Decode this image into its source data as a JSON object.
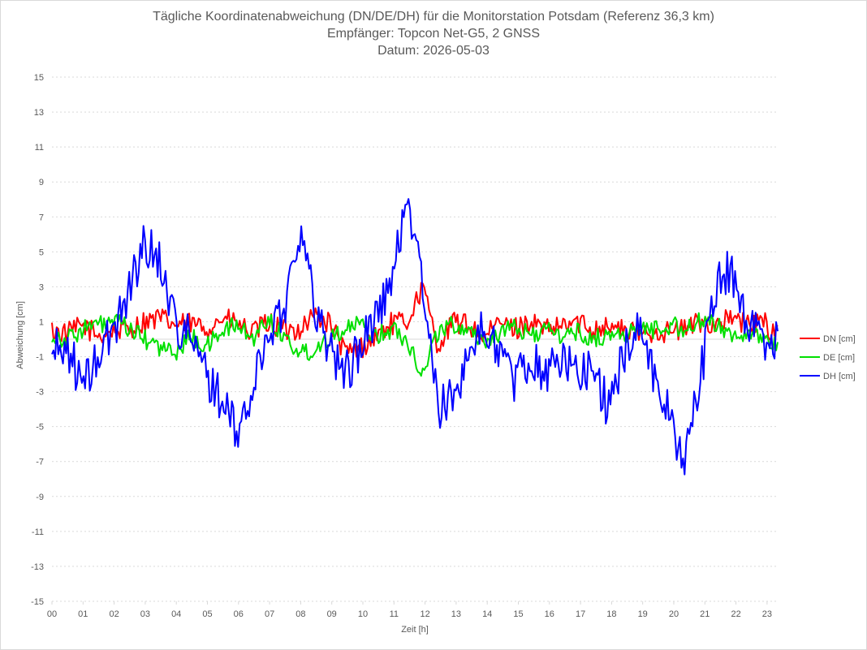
{
  "title": {
    "line1": "Tägliche Koordinatenabweichung (DN/DE/DH) für die Monitorstation Potsdam (Referenz 36,3 km)",
    "line2": "Empfänger: Topcon Net-G5, 2 GNSS",
    "line3": "Datum: 2026-05-03"
  },
  "chart_data": {
    "type": "line",
    "xlabel": "Zeit [h]",
    "ylabel": "Abweichung [cm]",
    "xlim": [
      0,
      23.5
    ],
    "ylim": [
      -15,
      15
    ],
    "y_ticks": [
      15,
      13,
      11,
      9,
      7,
      5,
      3,
      1,
      -1,
      -3,
      -5,
      -7,
      -9,
      -11,
      -13,
      -15
    ],
    "x_tick_labels": [
      "00",
      "01",
      "02",
      "03",
      "04",
      "05",
      "06",
      "07",
      "08",
      "09",
      "10",
      "11",
      "12",
      "13",
      "14",
      "15",
      "16",
      "17",
      "18",
      "19",
      "20",
      "21",
      "22",
      "23"
    ],
    "grid": "horizontal dotted",
    "legend_position": "right",
    "colors": {
      "DN [cm]": "#ff0000",
      "DE [cm]": "#00e000",
      "DH [cm]": "#0000ff"
    },
    "x": [
      0,
      0.5,
      1,
      1.5,
      2,
      2.5,
      3,
      3.5,
      4,
      4.5,
      5,
      5.5,
      6,
      6.5,
      7,
      7.5,
      8,
      8.5,
      9,
      9.5,
      10,
      10.5,
      11,
      11.5,
      12,
      12.5,
      13,
      13.5,
      14,
      14.5,
      15,
      15.5,
      16,
      16.5,
      17,
      17.5,
      18,
      18.5,
      19,
      19.5,
      20,
      20.5,
      21,
      21.5,
      22,
      22.5,
      23,
      23.4
    ],
    "series": [
      {
        "name": "DN [cm]",
        "values": [
          0.5,
          0.3,
          0.8,
          0.2,
          0.5,
          0.6,
          1.0,
          1.2,
          0.8,
          0.9,
          0.6,
          1.2,
          0.9,
          0.3,
          1.0,
          0.5,
          0.6,
          1.4,
          0.9,
          -0.8,
          -0.5,
          0.2,
          0.9,
          1.0,
          3.0,
          -0.4,
          1.0,
          0.8,
          0.0,
          1.0,
          0.6,
          1.0,
          0.5,
          0.7,
          1.0,
          0.6,
          0.8,
          0.5,
          0.3,
          0.5,
          0.4,
          0.6,
          1.0,
          0.9,
          1.2,
          0.8,
          1.0,
          0.4
        ]
      },
      {
        "name": "DE [cm]",
        "values": [
          0.2,
          0.0,
          0.6,
          0.8,
          1.0,
          0.6,
          0.0,
          -0.5,
          -0.8,
          0.2,
          -0.5,
          0.5,
          0.8,
          0.0,
          1.2,
          0.2,
          -0.8,
          -0.6,
          0.2,
          0.6,
          0.8,
          0.2,
          0.6,
          0.0,
          -2.0,
          0.5,
          0.8,
          0.6,
          -0.2,
          0.4,
          0.6,
          0.3,
          0.5,
          0.2,
          0.4,
          0.0,
          0.2,
          0.3,
          0.5,
          0.6,
          0.8,
          0.6,
          1.0,
          0.8,
          0.4,
          0.2,
          0.0,
          -0.2
        ]
      },
      {
        "name": "DH [cm]",
        "values": [
          -0.8,
          -0.4,
          -2.8,
          -1.0,
          0.5,
          3.0,
          5.5,
          4.5,
          1.0,
          0.0,
          -2.0,
          -3.5,
          -5.5,
          -3.0,
          0.5,
          1.5,
          6.5,
          2.0,
          -0.5,
          -2.0,
          -0.5,
          1.5,
          3.0,
          8.5,
          3.0,
          -4.0,
          -3.5,
          -0.5,
          0.5,
          -0.5,
          -2.5,
          -1.0,
          -2.0,
          -1.0,
          -2.0,
          -1.5,
          -4.0,
          -1.0,
          1.0,
          -2.0,
          -4.5,
          -7.0,
          -2.0,
          3.0,
          4.0,
          1.0,
          0.0,
          0.0
        ]
      }
    ]
  }
}
